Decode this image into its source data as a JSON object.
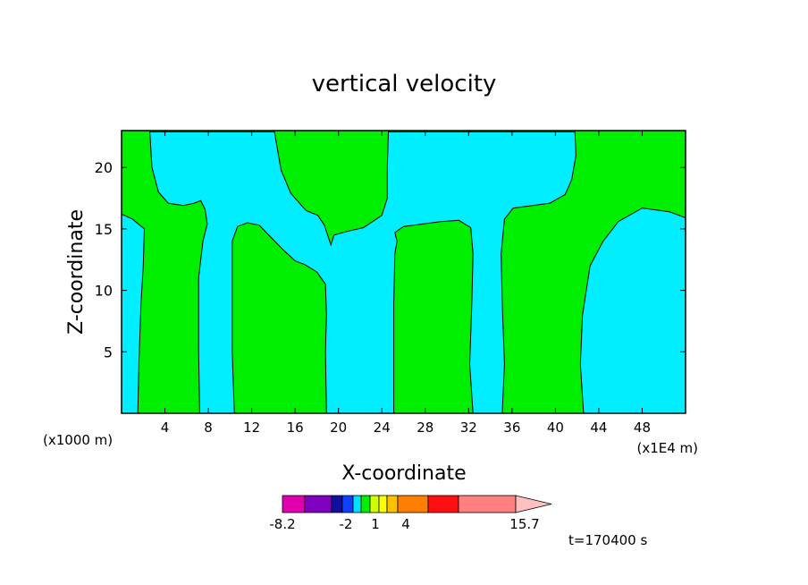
{
  "chart_data": {
    "type": "heatmap",
    "title": "vertical velocity",
    "xlabel": "X-coordinate",
    "ylabel": "Z-coordinate",
    "x_unit_left": "(x1000 m)",
    "x_unit_right": "(x1E4 m)",
    "xlim": [
      0,
      52
    ],
    "ylim": [
      0,
      23
    ],
    "x_ticks": [
      4,
      8,
      12,
      16,
      20,
      24,
      28,
      32,
      36,
      40,
      44,
      48
    ],
    "y_ticks": [
      5,
      10,
      15,
      20
    ],
    "time_label": "t=170400 s",
    "colorbar": {
      "colors": [
        "#e000b0",
        "#8000c0",
        "#1010a0",
        "#1040ff",
        "#00e0ff",
        "#00f000",
        "#d0ff00",
        "#ffff00",
        "#ffc000",
        "#ff8000",
        "#ff1010",
        "#ff8080",
        "#ffc0c0"
      ],
      "tick_labels": [
        "-8.2",
        "-2",
        "1",
        "4",
        "15.7"
      ],
      "range": [
        -8.2,
        15.7
      ]
    },
    "fill_colors": {
      "negative": "#00eeff",
      "positive": "#00ee00"
    },
    "regions": [
      {
        "sign": "negative",
        "polygon": [
          [
            0,
            0
          ],
          [
            1.5,
            0
          ],
          [
            1.6,
            4
          ],
          [
            1.8,
            9
          ],
          [
            2,
            12
          ],
          [
            2.1,
            15
          ],
          [
            1,
            15.8
          ],
          [
            0,
            16.2
          ]
        ]
      },
      {
        "sign": "negative",
        "polygon": [
          [
            2.6,
            22.9
          ],
          [
            2.8,
            20
          ],
          [
            3.4,
            18
          ],
          [
            4.3,
            17.1
          ],
          [
            5.7,
            16.9
          ],
          [
            6.7,
            17.1
          ],
          [
            7.3,
            17.3
          ],
          [
            7.7,
            16.6
          ],
          [
            7.9,
            15.4
          ],
          [
            7.5,
            14
          ],
          [
            7.1,
            11
          ],
          [
            7.1,
            5
          ],
          [
            7.2,
            0
          ],
          [
            10.4,
            0
          ],
          [
            10.2,
            5
          ],
          [
            10.2,
            11
          ],
          [
            10.2,
            14
          ],
          [
            10.7,
            15.2
          ],
          [
            11.6,
            15.5
          ],
          [
            12.7,
            15.3
          ],
          [
            13.9,
            14.2
          ],
          [
            14.9,
            13.3
          ],
          [
            16,
            12.4
          ],
          [
            16.9,
            12.1
          ],
          [
            18,
            11.5
          ],
          [
            18.8,
            10.5
          ],
          [
            18.9,
            8
          ],
          [
            18.8,
            5
          ],
          [
            18.9,
            0
          ],
          [
            25.1,
            0
          ],
          [
            25.1,
            4
          ],
          [
            25.1,
            9
          ],
          [
            25.2,
            13
          ],
          [
            25.4,
            14
          ],
          [
            25.2,
            14.7
          ],
          [
            26,
            15.2
          ],
          [
            27.8,
            15.4
          ],
          [
            29.4,
            15.6
          ],
          [
            31.1,
            15.7
          ],
          [
            32.2,
            15.1
          ],
          [
            32.4,
            13
          ],
          [
            32.3,
            9
          ],
          [
            32.1,
            4
          ],
          [
            32.4,
            0
          ],
          [
            35.1,
            0
          ],
          [
            35.3,
            4
          ],
          [
            35.1,
            9
          ],
          [
            35,
            13
          ],
          [
            35.3,
            15.8
          ],
          [
            36.1,
            16.7
          ],
          [
            37.9,
            16.9
          ],
          [
            39.5,
            17.1
          ],
          [
            40.9,
            17.8
          ],
          [
            41.5,
            19
          ],
          [
            41.9,
            21
          ],
          [
            41.8,
            22.9
          ],
          [
            24.6,
            22.9
          ],
          [
            24.5,
            20
          ],
          [
            24.5,
            17.5
          ],
          [
            24,
            16.1
          ],
          [
            22.3,
            15.1
          ],
          [
            20.8,
            14.8
          ],
          [
            19.6,
            14.5
          ],
          [
            19.3,
            13.7
          ],
          [
            18.7,
            15.3
          ],
          [
            18.1,
            16.1
          ],
          [
            17,
            16.5
          ],
          [
            15.6,
            17.9
          ],
          [
            14.7,
            19.8
          ],
          [
            14.1,
            22.9
          ]
        ]
      },
      {
        "sign": "negative",
        "polygon": [
          [
            42.6,
            0
          ],
          [
            52,
            0
          ],
          [
            52,
            15.9
          ],
          [
            50.5,
            16.4
          ],
          [
            48,
            16.7
          ],
          [
            45.8,
            15.6
          ],
          [
            44.4,
            14
          ],
          [
            43.2,
            12
          ],
          [
            42.5,
            8
          ],
          [
            42.3,
            4
          ]
        ]
      }
    ]
  }
}
